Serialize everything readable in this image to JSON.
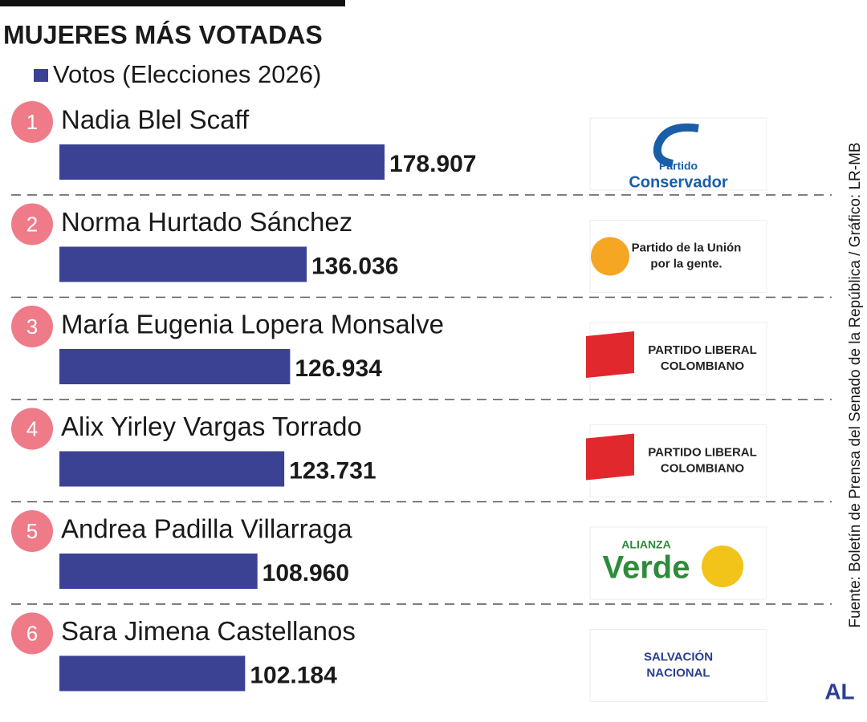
{
  "chart_data": {
    "type": "bar",
    "orientation": "horizontal",
    "title": "MUJERES MÁS VOTADAS",
    "series_name": "Votos (Elecciones 2026)",
    "color": "#3b4293",
    "ranks": [
      "1",
      "2",
      "3",
      "4",
      "5",
      "6"
    ],
    "categories": [
      "Nadia Blel Scaff",
      "Norma Hurtado Sánchez",
      "María Eugenia Lopera Monsalve",
      "Alix Yirley Vargas Torrado",
      "Andrea Padilla Villarraga",
      "Sara Jimena Castellanos"
    ],
    "values": [
      178907,
      136036,
      126934,
      123731,
      108960,
      102184
    ],
    "value_labels": [
      "178.907",
      "136.036",
      "126.934",
      "123.731",
      "108.960",
      "102.184"
    ],
    "xlim": [
      0,
      250000
    ],
    "logos": [
      [
        "Partido",
        "Conservador"
      ],
      [
        "Partido de la Unión",
        "por la gente."
      ],
      [
        "PARTIDO LIBERAL",
        "COLOMBIANO"
      ],
      [
        "PARTIDO LIBERAL",
        "COLOMBIANO"
      ],
      [
        "ALIANZA",
        "Verde"
      ],
      [
        "SALVACIÓN",
        "NACIONAL"
      ]
    ],
    "source": "Fuente: Boletín de Prensa del Senado de la República / Gráfico: LR-MB",
    "brand": "AL"
  }
}
